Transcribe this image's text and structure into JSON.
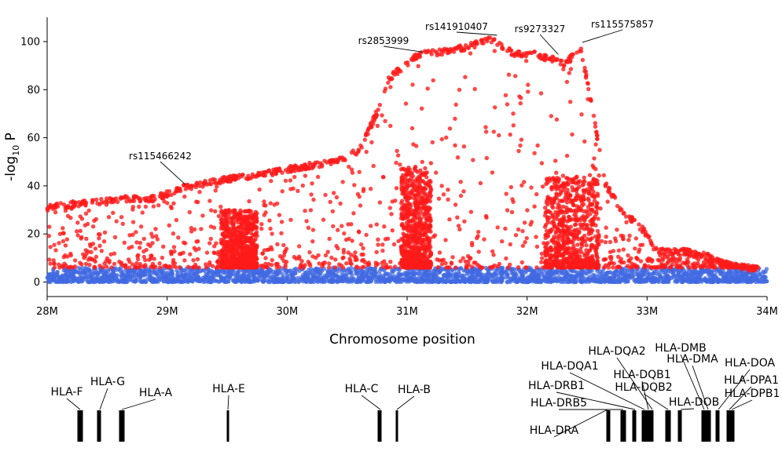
{
  "chart_data": {
    "type": "scatter",
    "xlabel": "Chromosome position",
    "ylabel": "-log10 P",
    "ylabel_parts": {
      "prefix": "-log",
      "sub": "10",
      "suffix": " P"
    },
    "xlim": [
      28000000,
      34000000
    ],
    "ylim": [
      -6,
      110
    ],
    "xticks": [
      28000000,
      29000000,
      30000000,
      31000000,
      32000000,
      33000000,
      34000000
    ],
    "xtick_labels": [
      "28M",
      "29M",
      "30M",
      "31M",
      "32M",
      "33M",
      "34M"
    ],
    "yticks": [
      0,
      20,
      40,
      60,
      80,
      100
    ],
    "ytick_labels": [
      "0",
      "20",
      "40",
      "60",
      "80",
      "100"
    ],
    "grid": false,
    "significance_threshold": 6,
    "colors": {
      "significant": "#ff1a1a",
      "nonsignificant": "#4169e1"
    },
    "series": [
      {
        "role": "significant",
        "color": "#ff1a1a",
        "envelope": [
          [
            28000000,
            32
          ],
          [
            28100000,
            33
          ],
          [
            28300000,
            34
          ],
          [
            28500000,
            35
          ],
          [
            28700000,
            36
          ],
          [
            28900000,
            36
          ],
          [
            29100000,
            40
          ],
          [
            29300000,
            42
          ],
          [
            29500000,
            44
          ],
          [
            29800000,
            46
          ],
          [
            30100000,
            49
          ],
          [
            30400000,
            51
          ],
          [
            30600000,
            56
          ],
          [
            30750000,
            72
          ],
          [
            30850000,
            86
          ],
          [
            30950000,
            90
          ],
          [
            31100000,
            96
          ],
          [
            31300000,
            97
          ],
          [
            31500000,
            99
          ],
          [
            31700000,
            102
          ],
          [
            31900000,
            96
          ],
          [
            32050000,
            96
          ],
          [
            32200000,
            94
          ],
          [
            32300000,
            92
          ],
          [
            32450000,
            98
          ],
          [
            32550000,
            72
          ],
          [
            32650000,
            42
          ],
          [
            32800000,
            30
          ],
          [
            32950000,
            24
          ],
          [
            33100000,
            14
          ],
          [
            33300000,
            14
          ],
          [
            33500000,
            12
          ],
          [
            33700000,
            8
          ],
          [
            34000000,
            6
          ]
        ],
        "dense_clusters": [
          {
            "x": [
              30950000,
              31200000
            ],
            "ymax": 48
          },
          {
            "x": [
              32150000,
              32600000
            ],
            "ymax": 45
          },
          {
            "x": [
              29450000,
              29750000
            ],
            "ymax": 30
          }
        ]
      },
      {
        "role": "nonsignificant",
        "color": "#4169e1",
        "ymax": 6,
        "x_range": [
          28000000,
          34000000
        ]
      }
    ],
    "annotations": [
      {
        "label": "rs115466242",
        "x": 29150000,
        "y": 40
      },
      {
        "label": "rs2853999",
        "x": 31130000,
        "y": 95
      },
      {
        "label": "rs141910407",
        "x": 31750000,
        "y": 102
      },
      {
        "label": "rs9273327",
        "x": 32260000,
        "y": 94
      },
      {
        "label": "rs115575857",
        "x": 32460000,
        "y": 99
      }
    ],
    "genes": [
      {
        "name": "HLA-F",
        "pos": 29700000
      },
      {
        "name": "HLA-G",
        "pos": 29790000
      },
      {
        "name": "HLA-A",
        "pos": 29910000
      },
      {
        "name": "HLA-E",
        "pos": 30460000
      },
      {
        "name": "HLA-C",
        "pos": 31240000
      },
      {
        "name": "HLA-B",
        "pos": 31320000
      },
      {
        "name": "HLA-DRA",
        "pos": 32410000
      },
      {
        "name": "HLA-DRB5",
        "pos": 32490000
      },
      {
        "name": "HLA-DRB1",
        "pos": 32550000
      },
      {
        "name": "HLA-DQA1",
        "pos": 32610000
      },
      {
        "name": "HLA-DQB1",
        "pos": 32630000
      },
      {
        "name": "HLA-DQA2",
        "pos": 32710000
      },
      {
        "name": "HLA-DQB2",
        "pos": 32730000
      },
      {
        "name": "HLA-DOB",
        "pos": 32780000
      },
      {
        "name": "HLA-DMB",
        "pos": 32900000
      },
      {
        "name": "HLA-DMA",
        "pos": 32920000
      },
      {
        "name": "HLA-DOA",
        "pos": 32970000
      },
      {
        "name": "HLA-DPA1",
        "pos": 33040000
      },
      {
        "name": "HLA-DPB1",
        "pos": 33050000
      }
    ]
  }
}
